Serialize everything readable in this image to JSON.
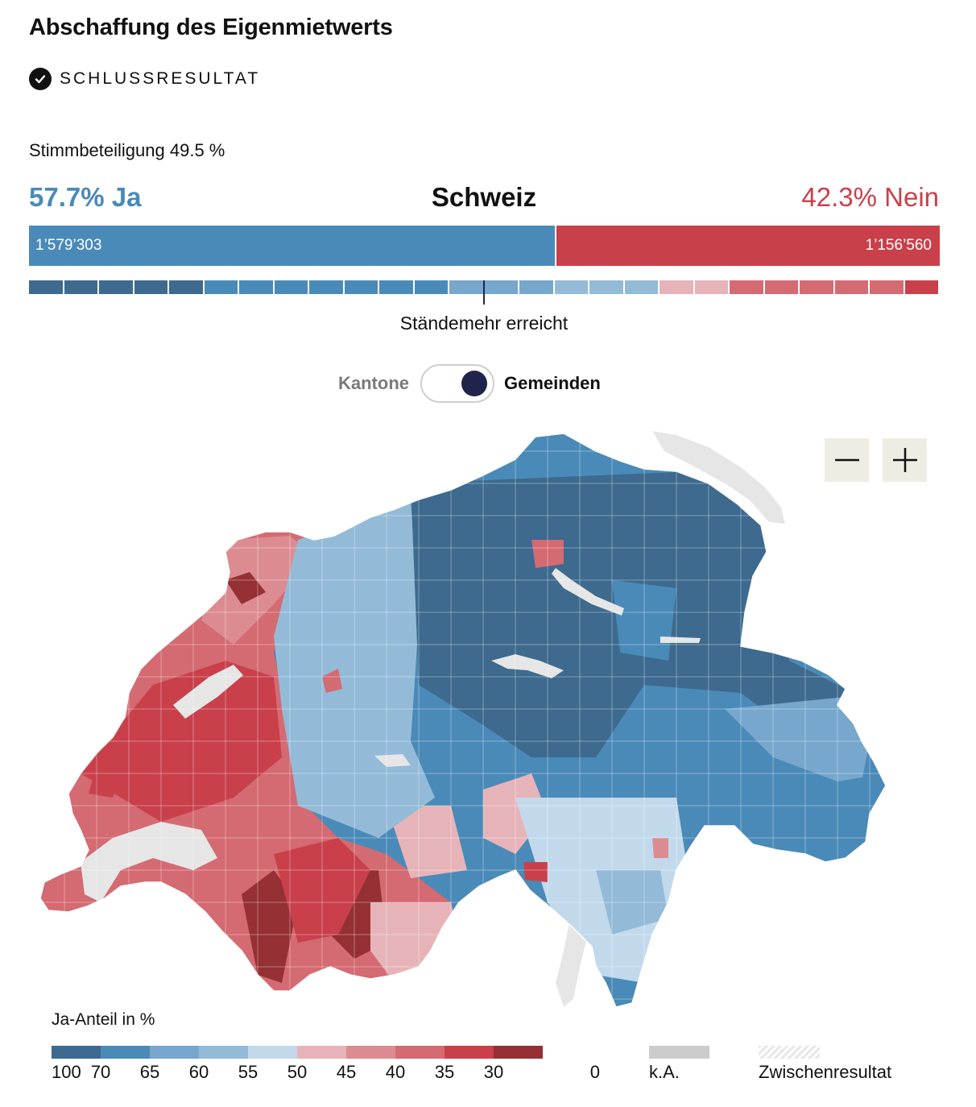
{
  "header": {
    "title": "Abschaffung des Eigenmietwerts",
    "status": "SCHLUSSRESULTAT"
  },
  "summary": {
    "turnout": "Stimmbeteiligung 49.5 %",
    "ja_label": "57.7% Ja",
    "region": "Schweiz",
    "nein_label": "42.3% Nein",
    "ja_votes": "1’579’303",
    "nein_votes": "1’156’560",
    "ja_fraction": 0.577,
    "majority_label": "Ständemehr erreicht"
  },
  "canton_colors": [
    "#3d6a8e",
    "#3d6a8e",
    "#3d6a8e",
    "#3d6a8e",
    "#3d6a8e",
    "#4a8ab8",
    "#4a8ab8",
    "#4a8ab8",
    "#4a8ab8",
    "#4a8ab8",
    "#4a8ab8",
    "#4a8ab8",
    "#77a7cc",
    "#77a7cc",
    "#77a7cc",
    "#93bbd8",
    "#93bbd8",
    "#93bbd8",
    "#e6b4b8",
    "#e6b4b8",
    "#d46a72",
    "#d46a72",
    "#d46a72",
    "#d46a72",
    "#d46a72",
    "#c9404a"
  ],
  "toggle": {
    "left": "Kantone",
    "right": "Gemeinden",
    "selected": "Gemeinden"
  },
  "zoom": {
    "minus_icon": "minus-icon",
    "plus_icon": "plus-icon"
  },
  "legend": {
    "title": "Ja-Anteil in %",
    "colors": [
      "#3d6a8e",
      "#4a8ab8",
      "#77a7cc",
      "#93bbd8",
      "#c2d9ec",
      "#e6b4b8",
      "#dc8c91",
      "#d46a72",
      "#c9404a",
      "#953034"
    ],
    "ticks": [
      "100",
      "70",
      "65",
      "60",
      "55",
      "50",
      "45",
      "40",
      "35",
      "30",
      "0"
    ],
    "na_label": "k.A.",
    "interim_label": "Zwischenresultat",
    "na_color": "#cccccc"
  }
}
